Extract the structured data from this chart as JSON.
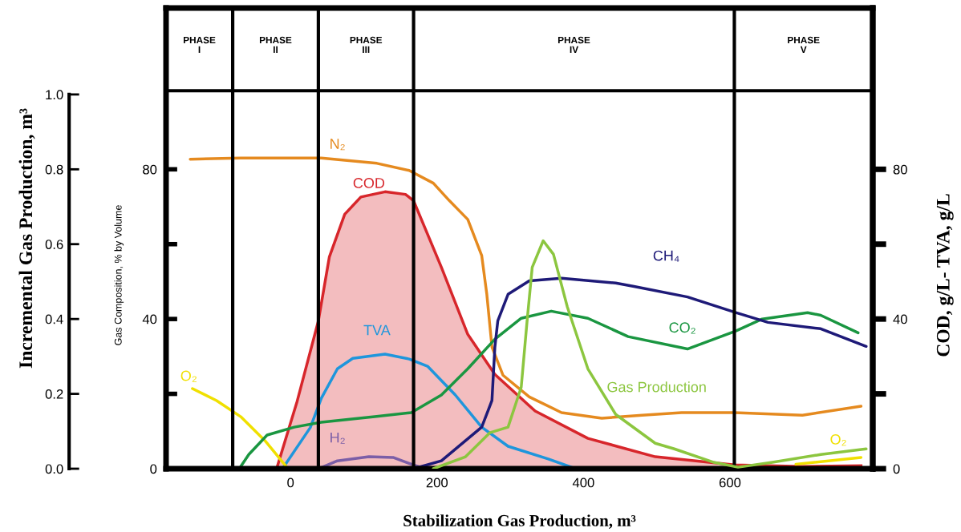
{
  "chart_data": {
    "type": "line",
    "xlabel": "Stabilization Gas Production, m³",
    "ylabel": "Incremental Gas Production, m³",
    "y3label": "Gas Composition, % by Volume",
    "y2label": "COD, g/L- TVA, g/L",
    "xlim": [
      -170,
      795
    ],
    "xticks": [
      0,
      200,
      400,
      600
    ],
    "ylim": [
      0,
      1.231
    ],
    "yticks": [
      {
        "value": 0,
        "label": "0.0"
      },
      {
        "value": 0.2,
        "label": "0.2"
      },
      {
        "value": 0.4,
        "label": "0.4"
      },
      {
        "value": 0.6,
        "label": "0.6"
      },
      {
        "value": 0.8,
        "label": "0.8"
      },
      {
        "value": 1.0,
        "label": "1.0"
      }
    ],
    "y3lim": [
      0,
      123.1
    ],
    "y3ticks": [
      0,
      {
        "value": 20,
        "label": null
      },
      40,
      {
        "value": 60,
        "label": null
      },
      80
    ],
    "y2lim": [
      0,
      123.1
    ],
    "y2ticks": [
      0,
      {
        "value": 20,
        "label": null
      },
      40,
      {
        "value": 60,
        "label": null
      },
      80
    ],
    "ref_lines": [
      {
        "axis": "y3",
        "value": 101
      },
      {
        "axis": "x",
        "value": -79
      },
      {
        "axis": "x",
        "value": 38
      },
      {
        "axis": "x",
        "value": 168
      },
      {
        "axis": "x",
        "value": 606
      }
    ],
    "annotations": [
      "PHASE\nI",
      "PHASE\nII",
      "PHASE\nIII",
      "PHASE\nIV",
      "PHASE\nV"
    ],
    "series": [
      {
        "name": "COD",
        "type": "area",
        "axis": "y2",
        "color": "#d7262b",
        "x": [
          -19,
          9,
          38,
          53,
          74,
          96,
          129,
          157,
          168,
          206,
          242,
          279,
          334,
          406,
          498,
          606,
          699,
          779
        ],
        "values": [
          0,
          18,
          39.5,
          56.6,
          68,
          72.6,
          74,
          73.3,
          71.6,
          53.8,
          35.9,
          25.2,
          15.4,
          8.1,
          3.2,
          1,
          0.6,
          0.8
        ]
      },
      {
        "name": "TVA",
        "axis": "y2",
        "color": "#1e96dc",
        "x": [
          -11,
          27,
          42,
          64,
          85,
          129,
          162,
          187,
          225,
          261,
          297,
          352,
          389
        ],
        "values": [
          0,
          11,
          18.8,
          26.7,
          29.5,
          30.6,
          29.3,
          27.4,
          19.7,
          11.1,
          6,
          2.6,
          0
        ]
      },
      {
        "name": "N₂",
        "axis": "y3",
        "color": "#e58a1f",
        "x": [
          -137,
          -68,
          42,
          118,
          162,
          195,
          217,
          242,
          261,
          268,
          275,
          290,
          326,
          370,
          425,
          480,
          534,
          606,
          699,
          779
        ],
        "values": [
          82.7,
          83,
          83,
          81.6,
          79.7,
          76.3,
          71.6,
          66.6,
          57,
          46.6,
          32.5,
          25,
          19.2,
          15,
          13.5,
          14.3,
          15,
          15,
          14.3,
          16.7
        ]
      },
      {
        "name": "H₂",
        "axis": "y3",
        "color": "#7b5ea7",
        "x": [
          38,
          64,
          107,
          140,
          168,
          184
        ],
        "values": [
          0,
          2.1,
          3.2,
          3.0,
          1,
          0
        ]
      },
      {
        "name": "O₂",
        "axis": "y3",
        "color": "#f0e000",
        "x": [
          -134,
          -101,
          -68,
          -35,
          -8,
          -4,
          200,
          690,
          779
        ],
        "values": [
          21.4,
          18.2,
          13.9,
          7.5,
          1.1,
          0,
          null,
          1.2,
          3.0
        ]
      },
      {
        "name": "CO₂",
        "axis": "y3",
        "color": "#1a9641",
        "x": [
          -70,
          -57,
          -32,
          5,
          42,
          115,
          165,
          206,
          242,
          279,
          315,
          356,
          406,
          461,
          542,
          608,
          644,
          706,
          724,
          775
        ],
        "values": [
          0,
          3.8,
          9,
          11.1,
          12.4,
          13.9,
          15,
          19.7,
          26.7,
          34.6,
          40.2,
          42.1,
          40.2,
          35.3,
          32,
          36.8,
          40,
          41.7,
          41,
          36.3
        ]
      },
      {
        "name": "CH₄",
        "axis": "y3",
        "color": "#1e1a78",
        "x": [
          168,
          206,
          261,
          275,
          279,
          283,
          297,
          326,
          370,
          444,
          469,
          542,
          608,
          652,
          724,
          786
        ],
        "values": [
          0,
          2.1,
          11.1,
          18.2,
          32.5,
          39.5,
          46.6,
          50.2,
          50.9,
          49.6,
          48.7,
          45.9,
          41.7,
          39.1,
          37.4,
          32.7
        ]
      },
      {
        "name": "Gas Production",
        "color": "#8cc63f",
        "x": [
          195,
          239,
          272,
          297,
          315,
          323,
          330,
          345,
          359,
          378,
          406,
          444,
          498,
          524,
          578,
          611,
          658,
          724,
          786
        ],
        "values": [
          0,
          0.032,
          0.096,
          0.111,
          0.218,
          0.395,
          0.538,
          0.609,
          0.573,
          0.432,
          0.267,
          0.145,
          0.068,
          0.053,
          0.017,
          0.004,
          0.017,
          0.038,
          0.053
        ]
      }
    ]
  }
}
